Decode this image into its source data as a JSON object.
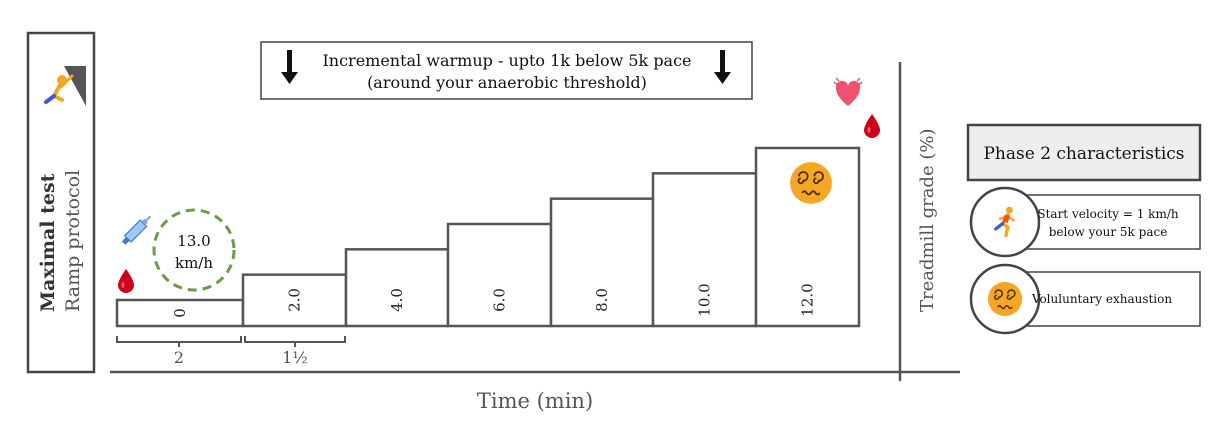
{
  "side_panel": {
    "title": "Maximal test",
    "subtitle": "Ramp protocol",
    "icon": "climber-icon"
  },
  "banner": {
    "line1": "Incremental warmup - upto 1k below 5k pace",
    "line2": "(around your anaerobic threshold)",
    "icon": "down-arrow-icon"
  },
  "chart_data": {
    "type": "bar",
    "categories": [
      "0",
      "2.0",
      "4.0",
      "6.0",
      "8.0",
      "10.0",
      "12.0"
    ],
    "values": [
      0,
      2.0,
      4.0,
      6.0,
      8.0,
      10.0,
      12.0
    ],
    "xlabel": "Time (min)",
    "ylabel": "Treadmill grade (%)",
    "ylim": [
      0,
      12
    ],
    "durations": [
      "2",
      "1½"
    ],
    "start_speed": "13.0 km/h"
  },
  "icons": {
    "syringe": "syringe-icon",
    "blood_drop": "blood-drop-icon",
    "heart": "beating-heart-icon",
    "dizzy": "dizzy-face-icon",
    "runner": "runner-icon"
  },
  "phase2": {
    "title": "Phase 2 characteristics",
    "items": [
      {
        "icon": "runner-icon",
        "line1": "Start velocity = 1 km/h",
        "line2": "below your 5k pace"
      },
      {
        "icon": "dizzy-face-icon",
        "line1": "Vol",
        "line2": ""
      }
    ],
    "item2_text": "Voluluntary exhaustion"
  }
}
